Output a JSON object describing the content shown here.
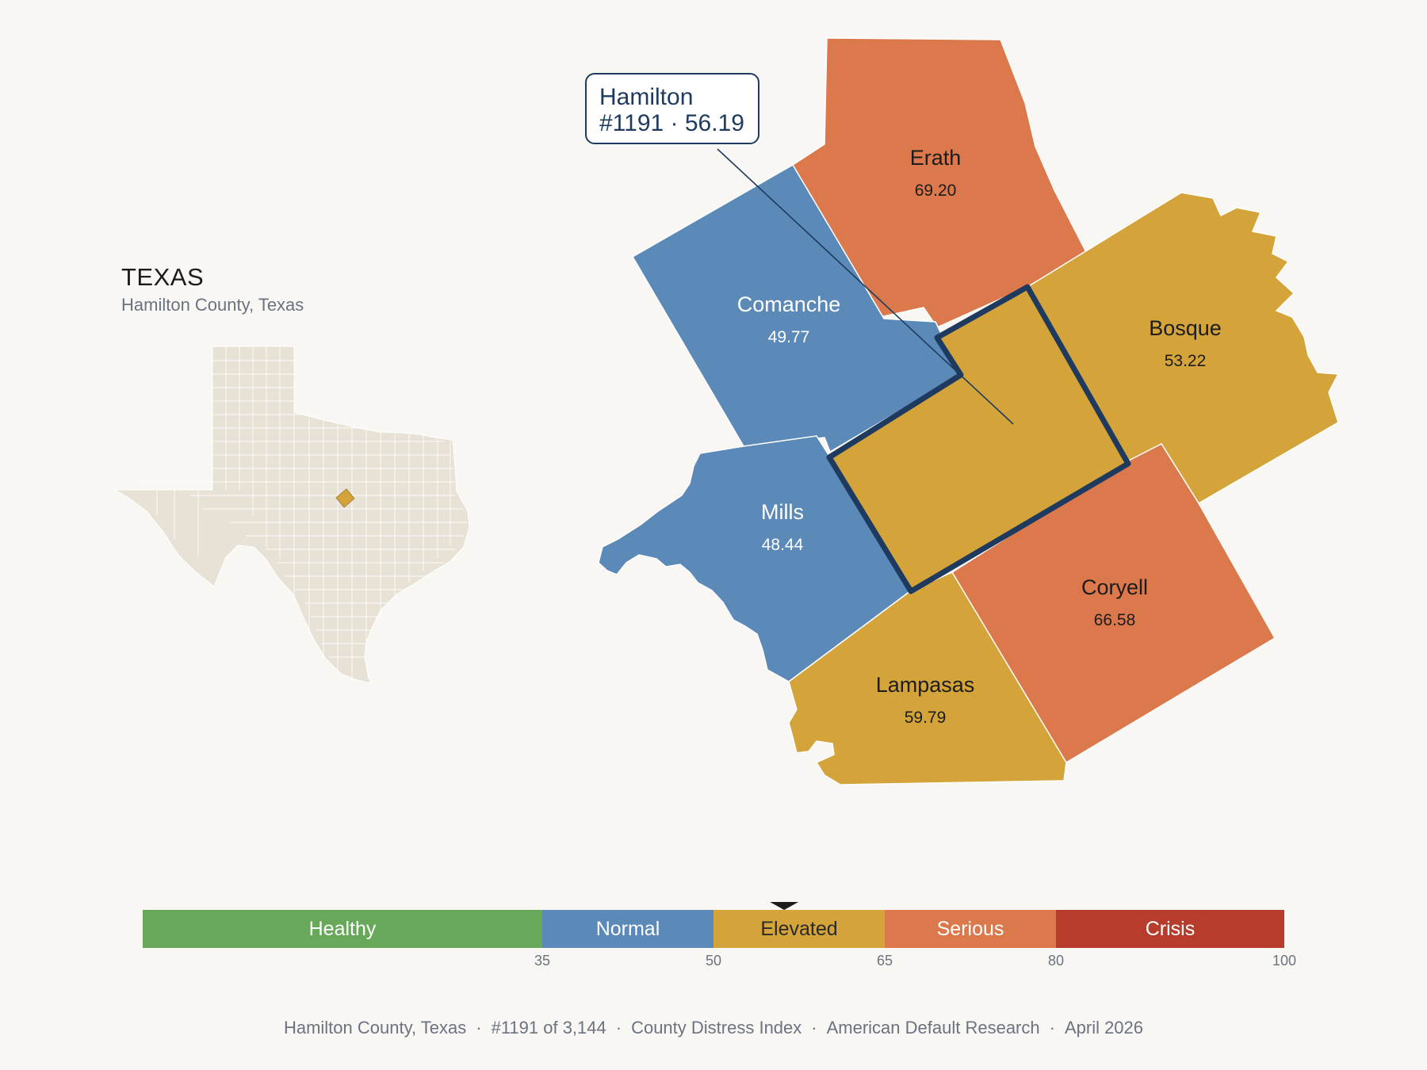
{
  "state": {
    "title": "TEXAS",
    "subtitle": "Hamilton County, Texas"
  },
  "callout": {
    "name": "Hamilton",
    "detail": "#1191 · 56.19"
  },
  "counties": [
    {
      "name": "Erath",
      "value": "69.20",
      "category": "Serious"
    },
    {
      "name": "Comanche",
      "value": "49.77",
      "category": "Normal"
    },
    {
      "name": "Bosque",
      "value": "53.22",
      "category": "Elevated"
    },
    {
      "name": "Mills",
      "value": "48.44",
      "category": "Normal"
    },
    {
      "name": "Coryell",
      "value": "66.58",
      "category": "Serious"
    },
    {
      "name": "Lampasas",
      "value": "59.79",
      "category": "Elevated"
    },
    {
      "name": "Hamilton",
      "value": "56.19",
      "category": "Elevated",
      "highlighted": true
    }
  ],
  "legend": {
    "min": 0,
    "max": 100,
    "marker_value": 56.19,
    "bands": [
      {
        "label": "Healthy",
        "from": 0,
        "to": 35,
        "color": "#68a85a",
        "text_color": "#ffffff"
      },
      {
        "label": "Normal",
        "from": 35,
        "to": 50,
        "color": "#5b8ab9",
        "text_color": "#ffffff"
      },
      {
        "label": "Elevated",
        "from": 50,
        "to": 65,
        "color": "#d4a43b",
        "text_color": "#2a2a2a"
      },
      {
        "label": "Serious",
        "from": 65,
        "to": 80,
        "color": "#db784c",
        "text_color": "#ffffff"
      },
      {
        "label": "Crisis",
        "from": 80,
        "to": 100,
        "color": "#b83c2c",
        "text_color": "#ffffff"
      }
    ],
    "ticks": [
      "35",
      "50",
      "65",
      "80",
      "100"
    ]
  },
  "colors": {
    "Normal": "#5b8ab9",
    "Elevated": "#d4a43b",
    "Serious": "#db784c",
    "outline": "#1e3a5f",
    "state_fill": "#e8e2d6",
    "background": "#f9f7f3"
  },
  "footer": {
    "county": "Hamilton County, Texas",
    "rank": "#1191 of 3,144",
    "index": "County Distress Index",
    "source": "American Default Research",
    "date": "April 2026"
  }
}
